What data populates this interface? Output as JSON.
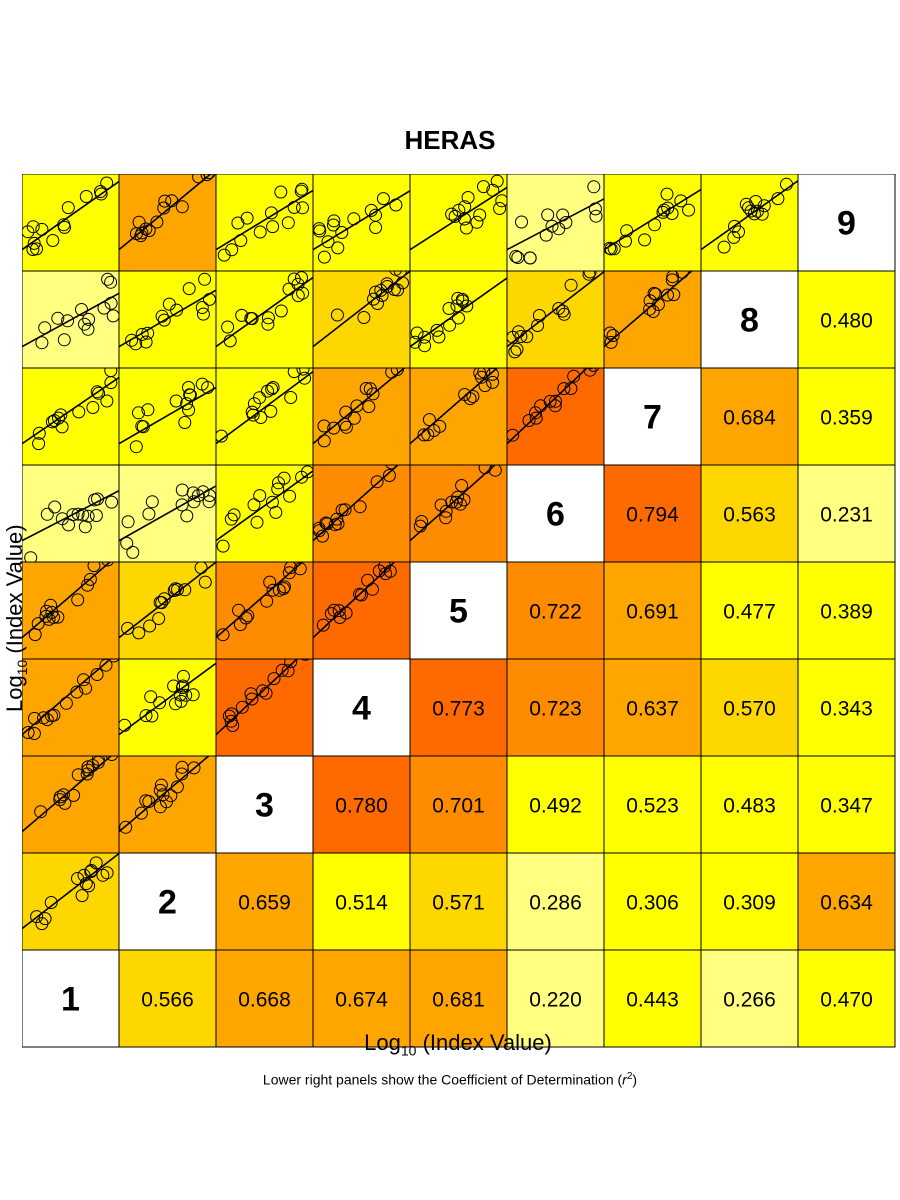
{
  "chart_data": {
    "type": "heatmap",
    "title": "HERAS",
    "xlabel": "Log10 (Index Value)",
    "ylabel": "Log10 (Index Value)",
    "note": "Lower right panels show the Coefficient of Determination (r²)",
    "indices": [
      "1",
      "2",
      "3",
      "4",
      "5",
      "6",
      "7",
      "8",
      "9"
    ],
    "r2_labels": [
      [
        "",
        "0.566",
        "0.668",
        "0.674",
        "0.681",
        "0.220",
        "0.443",
        "0.266",
        "0.470"
      ],
      [
        "",
        "",
        "0.659",
        "0.514",
        "0.571",
        "0.286",
        "0.306",
        "0.309",
        "0.634"
      ],
      [
        "",
        "",
        "",
        "0.780",
        "0.701",
        "0.492",
        "0.523",
        "0.483",
        "0.347"
      ],
      [
        "",
        "",
        "",
        "",
        "0.773",
        "0.723",
        "0.637",
        "0.570",
        "0.343"
      ],
      [
        "",
        "",
        "",
        "",
        "",
        "0.722",
        "0.691",
        "0.477",
        "0.389"
      ],
      [
        "",
        "",
        "",
        "",
        "",
        "",
        "0.794",
        "0.563",
        "0.231"
      ],
      [
        "",
        "",
        "",
        "",
        "",
        "",
        "",
        "0.684",
        "0.359"
      ],
      [
        "",
        "",
        "",
        "",
        "",
        "",
        "",
        "",
        "0.480"
      ],
      [
        "",
        "",
        "",
        "",
        "",
        "",
        "",
        "",
        ""
      ]
    ],
    "color_scale": [
      {
        "min": 0.0,
        "max": 0.3,
        "color": "#FFFF80"
      },
      {
        "min": 0.3,
        "max": 0.55,
        "color": "#FFFF00"
      },
      {
        "min": 0.55,
        "max": 0.6,
        "color": "#FFD700"
      },
      {
        "min": 0.6,
        "max": 0.7,
        "color": "#FFA500"
      },
      {
        "min": 0.7,
        "max": 0.75,
        "color": "#FF8C00"
      },
      {
        "min": 0.75,
        "max": 1.0,
        "color": "#FF6A00"
      }
    ],
    "lower_left_panels": "scatter plots of index pairs with fitted regression line; panel color matches the corresponding r² value"
  }
}
